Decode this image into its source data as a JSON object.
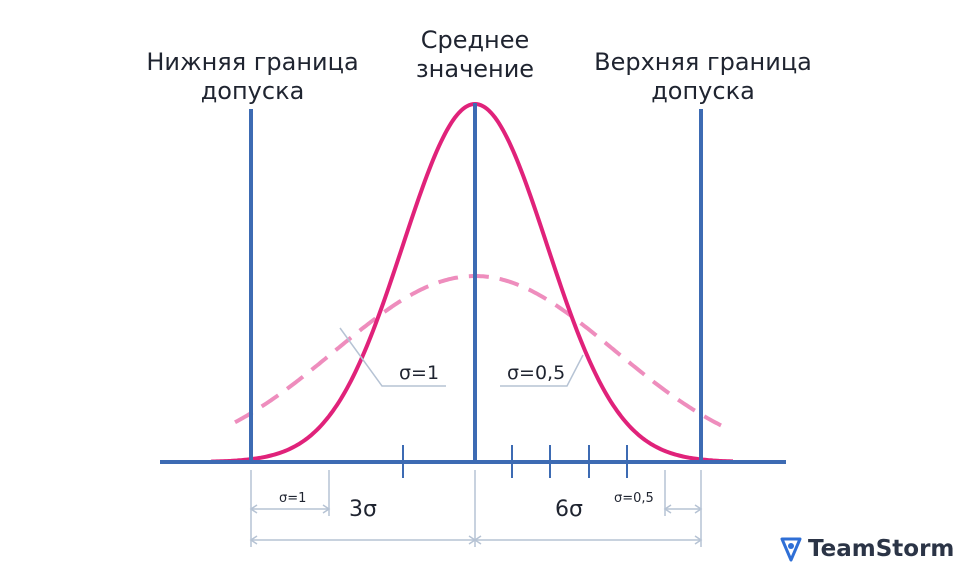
{
  "headers": {
    "lower_limit": [
      "Нижняя граница",
      "допуска"
    ],
    "mean": [
      "Среднее",
      "значение"
    ],
    "upper_limit": [
      "Верхняя граница",
      "допуска"
    ]
  },
  "curve_labels": {
    "wide": "σ=1",
    "narrow": "σ=0,5"
  },
  "dimensions": {
    "sigma_1_small": "σ=1",
    "three_sigma": "3σ",
    "six_sigma": "6σ",
    "sigma_05_small": "σ=0,5"
  },
  "brand": {
    "name": "TeamStorm",
    "icon": "teamstorm-logo-icon"
  },
  "colors": {
    "axis_blue": "#3d6bb3",
    "curve_magenta": "#e0227a",
    "curve_dashed": "#ee8dbd",
    "dimension_gray": "#b6c3d4",
    "text_dark": "#1f2430"
  }
}
